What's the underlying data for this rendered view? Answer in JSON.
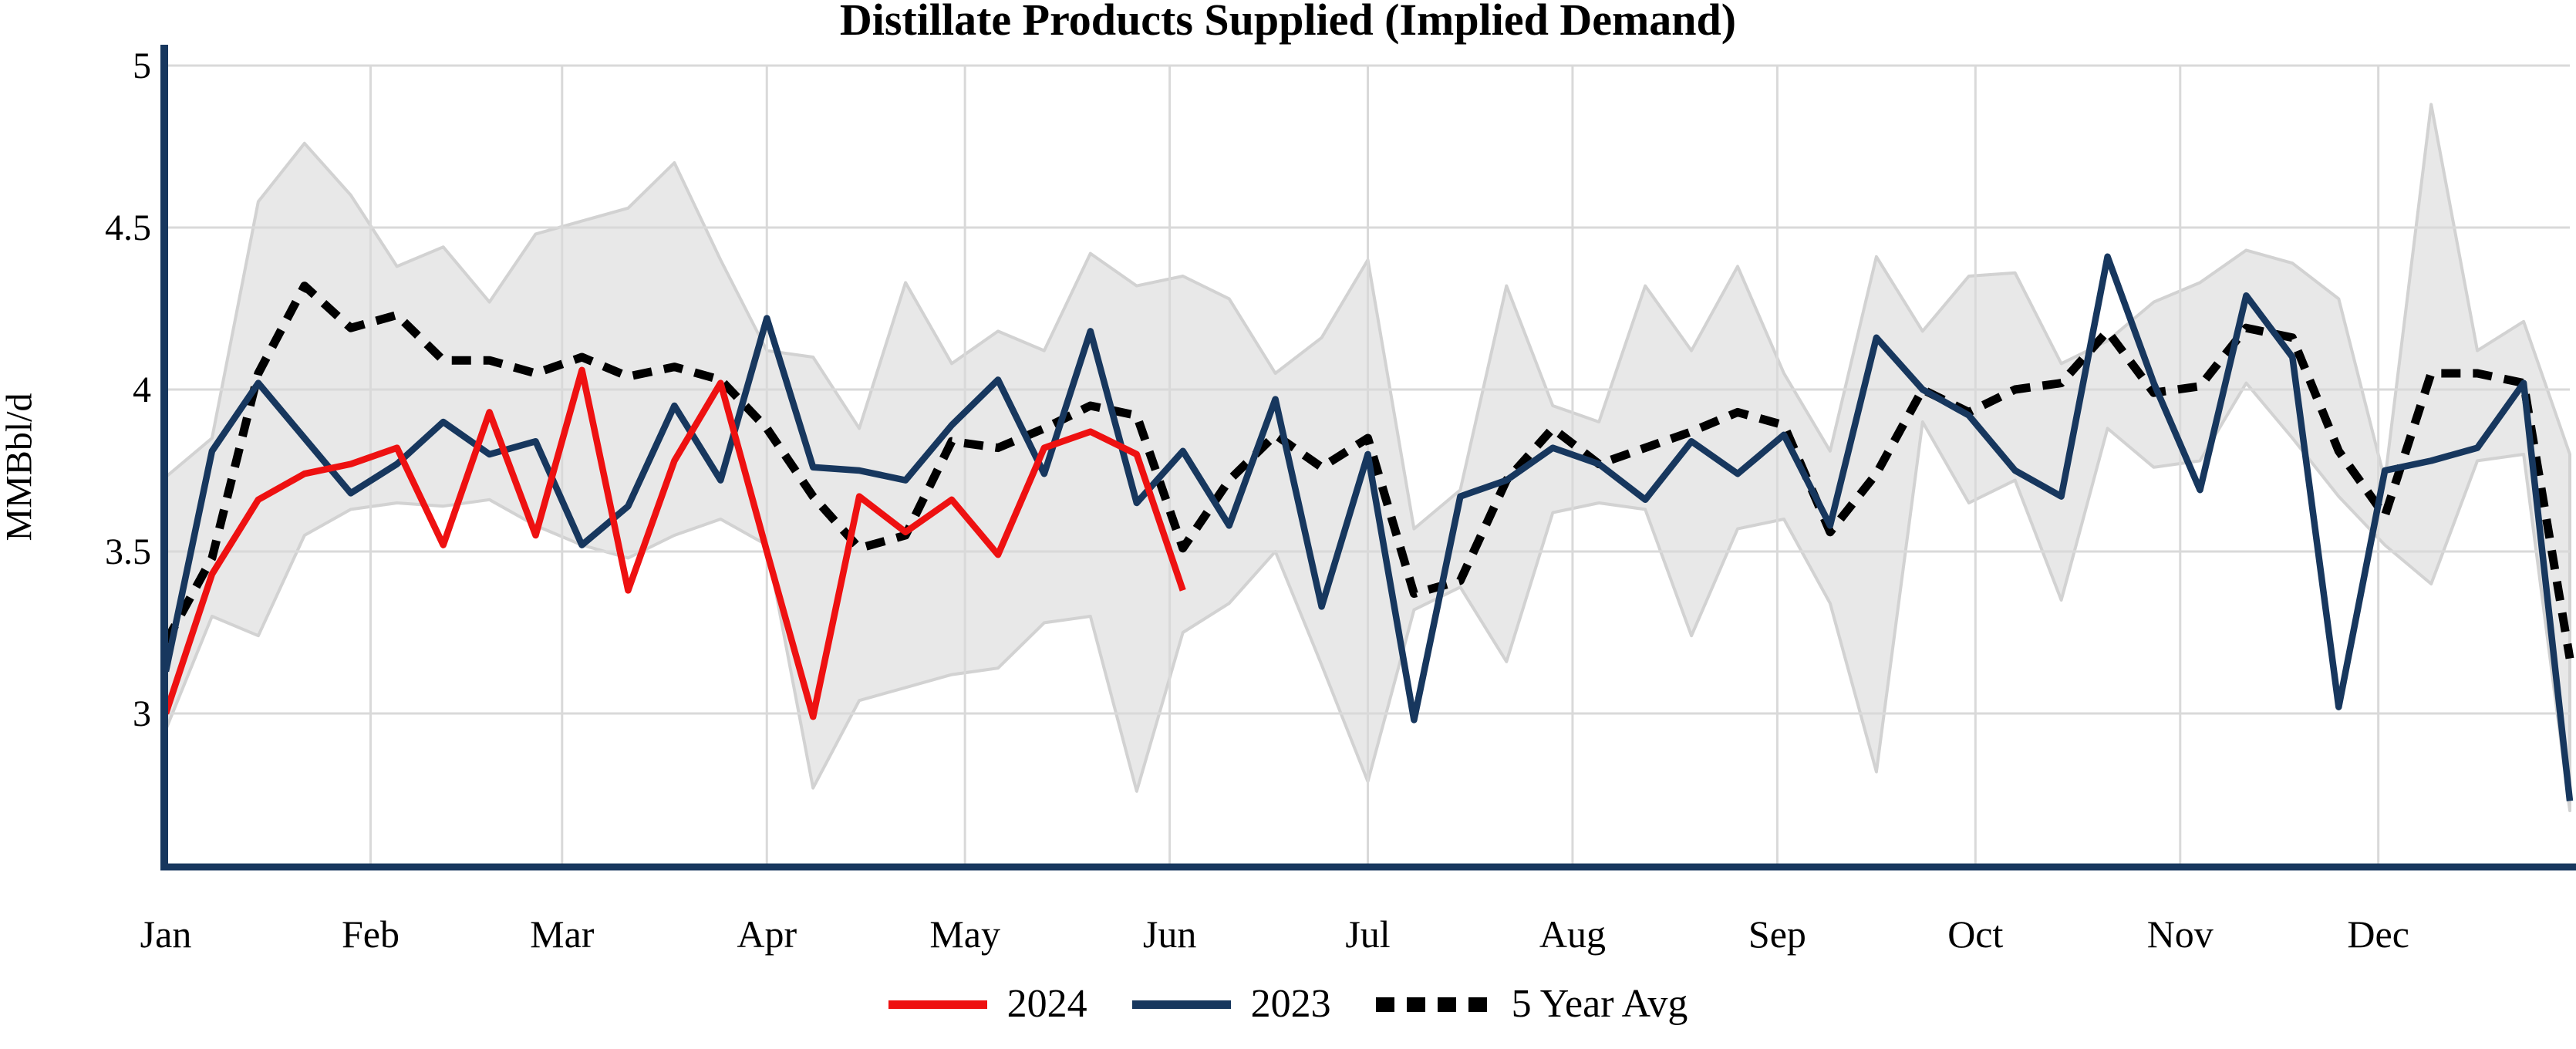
{
  "title": "Distillate Products Supplied (Implied Demand)",
  "y_axis": {
    "label": "MMBbl/d",
    "tick_labels": [
      "3",
      "3.5",
      "4",
      "4.5",
      "5"
    ],
    "tick_values": [
      3,
      3.5,
      4,
      4.5,
      5
    ]
  },
  "x_axis": {
    "month_labels": [
      "Jan",
      "Feb",
      "Mar",
      "Apr",
      "May",
      "Jun",
      "Jul",
      "Aug",
      "Sep",
      "Oct",
      "Nov",
      "Dec"
    ],
    "month_day_offsets": [
      0,
      31,
      60,
      91,
      121,
      152,
      182,
      213,
      244,
      274,
      305,
      335
    ]
  },
  "legend": [
    {
      "label": "2024",
      "color": "#ee1111",
      "style": "solid"
    },
    {
      "label": "2023",
      "color": "#17375e",
      "style": "solid"
    },
    {
      "label": "5 Year Avg",
      "color": "#000000",
      "style": "dotted"
    }
  ],
  "colors": {
    "axis": "#17375e",
    "gridline": "#d9d9d9",
    "band_fill": "#e8e8e8",
    "band_edge": "#d2d2d2",
    "series_2024": "#ee1111",
    "series_2023": "#17375e",
    "series_avg": "#000000",
    "text": "#000000"
  },
  "chart_data": {
    "type": "line",
    "title": "Distillate Products Supplied (Implied Demand)",
    "xlabel": "",
    "ylabel": "MMBbl/d",
    "ylim": [
      2.5,
      5
    ],
    "x_unit": "weekly points, Jan through Dec",
    "grid": "on",
    "legend_position": "bottom-center",
    "series": [
      {
        "name": "2024",
        "color": "#ee1111",
        "line_style": "solid",
        "values": [
          3.0,
          3.43,
          3.66,
          3.74,
          3.77,
          3.82,
          3.52,
          3.93,
          3.55,
          4.06,
          3.38,
          3.78,
          4.02,
          3.5,
          2.99,
          3.67,
          3.56,
          3.66,
          3.49,
          3.82,
          3.87,
          3.8,
          3.38
        ]
      },
      {
        "name": "2023",
        "color": "#17375e",
        "line_style": "solid",
        "values": [
          3.13,
          3.81,
          4.02,
          3.85,
          3.68,
          3.77,
          3.9,
          3.8,
          3.84,
          3.52,
          3.64,
          3.95,
          3.72,
          4.22,
          3.76,
          3.75,
          3.72,
          3.89,
          4.03,
          3.74,
          4.18,
          3.65,
          3.81,
          3.58,
          3.97,
          3.33,
          3.8,
          2.98,
          3.67,
          3.72,
          3.82,
          3.77,
          3.66,
          3.84,
          3.74,
          3.86,
          3.58,
          4.16,
          4.0,
          3.92,
          3.75,
          3.67,
          4.41,
          4.02,
          3.69,
          4.29,
          4.1,
          3.02,
          3.75,
          3.78,
          3.82,
          4.02,
          2.73
        ]
      },
      {
        "name": "5 Year Avg",
        "color": "#000000",
        "line_style": "dashed",
        "values": [
          3.22,
          3.48,
          4.05,
          4.32,
          4.19,
          4.23,
          4.09,
          4.09,
          4.05,
          4.1,
          4.04,
          4.07,
          4.03,
          3.88,
          3.67,
          3.51,
          3.55,
          3.84,
          3.82,
          3.88,
          3.95,
          3.92,
          3.51,
          3.72,
          3.86,
          3.76,
          3.85,
          3.37,
          3.41,
          3.72,
          3.88,
          3.77,
          3.82,
          3.87,
          3.93,
          3.89,
          3.56,
          3.74,
          4.0,
          3.93,
          4.0,
          4.02,
          4.18,
          3.99,
          4.01,
          4.19,
          4.16,
          3.81,
          3.61,
          4.05,
          4.05,
          4.02,
          3.17
        ]
      }
    ],
    "band": {
      "fill": "#e8e8e8",
      "edge": "#d2d2d2",
      "upper": [
        3.73,
        3.85,
        4.58,
        4.76,
        4.6,
        4.38,
        4.44,
        4.27,
        4.48,
        4.52,
        4.56,
        4.7,
        4.4,
        4.12,
        4.1,
        3.88,
        4.33,
        4.08,
        4.18,
        4.12,
        4.42,
        4.32,
        4.35,
        4.28,
        4.05,
        4.16,
        4.4,
        3.57,
        3.69,
        4.32,
        3.95,
        3.9,
        4.32,
        4.12,
        4.38,
        4.05,
        3.81,
        4.41,
        4.18,
        4.35,
        4.36,
        4.08,
        4.15,
        4.27,
        4.33,
        4.43,
        4.39,
        4.28,
        3.72,
        4.88,
        4.12,
        4.21,
        3.8
      ],
      "lower": [
        2.95,
        3.3,
        3.24,
        3.55,
        3.63,
        3.65,
        3.64,
        3.66,
        3.58,
        3.52,
        3.48,
        3.55,
        3.6,
        3.52,
        2.77,
        3.04,
        3.08,
        3.12,
        3.14,
        3.28,
        3.3,
        2.76,
        3.25,
        3.34,
        3.5,
        3.15,
        2.79,
        3.32,
        3.39,
        3.16,
        3.62,
        3.65,
        3.63,
        3.24,
        3.57,
        3.6,
        3.34,
        2.82,
        3.9,
        3.65,
        3.72,
        3.35,
        3.88,
        3.76,
        3.78,
        4.02,
        3.85,
        3.67,
        3.52,
        3.4,
        3.78,
        3.8,
        2.7
      ]
    }
  }
}
